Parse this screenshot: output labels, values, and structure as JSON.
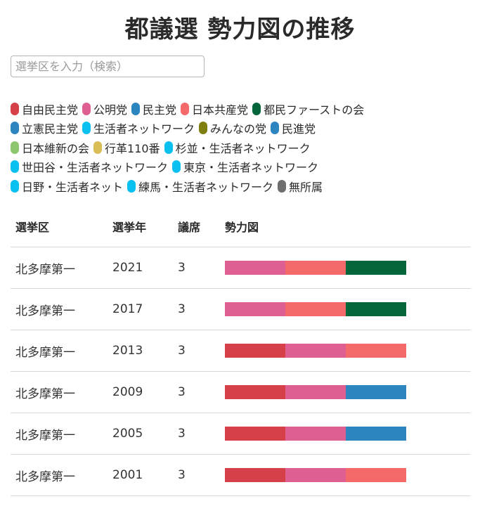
{
  "title": "都議選 勢力図の推移",
  "search": {
    "placeholder": "選挙区を入力（検索）",
    "value": ""
  },
  "legend_rows": [
    [
      {
        "label": "自由民主党",
        "color": "#d64049"
      },
      {
        "label": "公明党",
        "color": "#de6093"
      },
      {
        "label": "民主党",
        "color": "#2d85c0"
      },
      {
        "label": "日本共産党",
        "color": "#f4696a"
      },
      {
        "label": "都民ファーストの会",
        "color": "#03663a"
      }
    ],
    [
      {
        "label": "立憲民主党",
        "color": "#2d85c0"
      },
      {
        "label": "生活者ネットワーク",
        "color": "#0ac0f0"
      },
      {
        "label": "みんなの党",
        "color": "#7f7f10"
      },
      {
        "label": "民進党",
        "color": "#2d85c0"
      }
    ],
    [
      {
        "label": "日本維新の会",
        "color": "#8ec66e"
      },
      {
        "label": "行革110番",
        "color": "#d9be55"
      },
      {
        "label": "杉並・生活者ネットワーク",
        "color": "#0ac0f0"
      }
    ],
    [
      {
        "label": "世田谷・生活者ネットワーク",
        "color": "#0ac0f0"
      },
      {
        "label": "東京・生活者ネットワーク",
        "color": "#0ac0f0"
      }
    ],
    [
      {
        "label": "日野・生活者ネット",
        "color": "#0ac0f0"
      },
      {
        "label": "練馬・生活者ネットワーク",
        "color": "#0ac0f0"
      },
      {
        "label": "無所属",
        "color": "#6e6e6e"
      }
    ]
  ],
  "table": {
    "headers": [
      "選挙区",
      "選挙年",
      "議席",
      "勢力図"
    ],
    "rows": [
      {
        "district": "北多摩第一",
        "year": "2021",
        "seats": "3",
        "parties": [
          "公明党",
          "日本共産党",
          "都民ファーストの会"
        ],
        "colors": [
          "#de6093",
          "#f4696a",
          "#03663a"
        ]
      },
      {
        "district": "北多摩第一",
        "year": "2017",
        "seats": "3",
        "parties": [
          "公明党",
          "日本共産党",
          "都民ファーストの会"
        ],
        "colors": [
          "#de6093",
          "#f4696a",
          "#03663a"
        ]
      },
      {
        "district": "北多摩第一",
        "year": "2013",
        "seats": "3",
        "parties": [
          "自由民主党",
          "公明党",
          "日本共産党"
        ],
        "colors": [
          "#d64049",
          "#de6093",
          "#f4696a"
        ]
      },
      {
        "district": "北多摩第一",
        "year": "2009",
        "seats": "3",
        "parties": [
          "自由民主党",
          "公明党",
          "民主党"
        ],
        "colors": [
          "#d64049",
          "#de6093",
          "#2d85c0"
        ]
      },
      {
        "district": "北多摩第一",
        "year": "2005",
        "seats": "3",
        "parties": [
          "自由民主党",
          "公明党",
          "民主党"
        ],
        "colors": [
          "#d64049",
          "#de6093",
          "#2d85c0"
        ]
      },
      {
        "district": "北多摩第一",
        "year": "2001",
        "seats": "3",
        "parties": [
          "自由民主党",
          "公明党",
          "日本共産党"
        ],
        "colors": [
          "#d64049",
          "#de6093",
          "#f4696a"
        ]
      }
    ]
  }
}
